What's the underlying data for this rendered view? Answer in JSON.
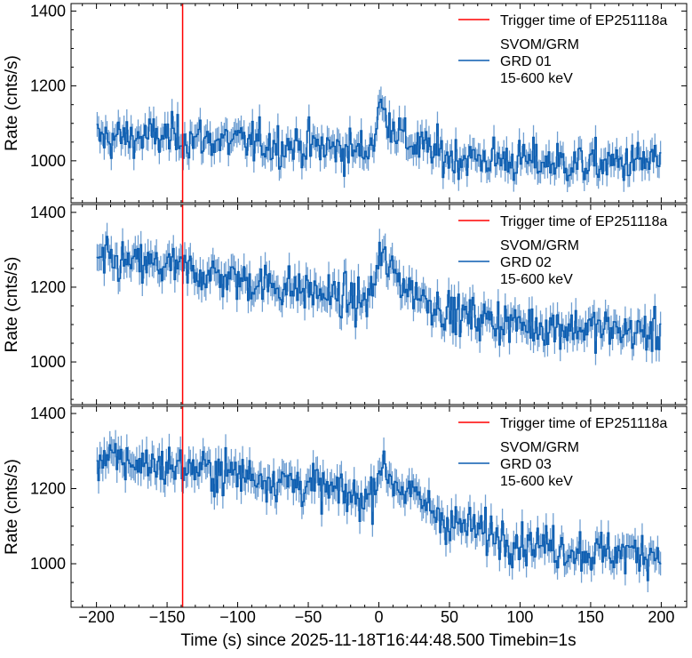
{
  "chart_data": {
    "type": "line",
    "xlabel": "Time (s) since 2025-11-18T16:44:48.500 Timebin=1s",
    "xlim": [
      -218,
      218
    ],
    "xticks": [
      -200,
      -150,
      -100,
      -50,
      0,
      50,
      100,
      150,
      200
    ],
    "xtick_labels": [
      "−200",
      "−150",
      "−100",
      "−50",
      "0",
      "50",
      "100",
      "150",
      "200"
    ],
    "bin_width_s": 1,
    "trigger": {
      "label": "Trigger time of EP251118a",
      "time": -139,
      "color": "#ff0000"
    },
    "series_color": "#0a5cb0",
    "panels": [
      {
        "ylabel": "Rate (cnts/s)",
        "ylim": [
          888,
          1420
        ],
        "yticks": [
          1000,
          1200,
          1400
        ],
        "legend": {
          "instrument": "SVOM/GRM",
          "detector": "GRD 01",
          "band": "15-600 keV"
        },
        "trend_time": [
          -200,
          -150,
          -100,
          -50,
          -10,
          -3,
          0,
          5,
          20,
          50,
          100,
          150,
          200
        ],
        "trend_rate": [
          1060,
          1065,
          1050,
          1040,
          1025,
          1060,
          1150,
          1120,
          1050,
          1010,
          1000,
          990,
          1000
        ]
      },
      {
        "ylabel": "Rate (cnts/s)",
        "ylim": [
          886,
          1421
        ],
        "yticks": [
          1000,
          1200,
          1400
        ],
        "legend": {
          "instrument": "SVOM/GRM",
          "detector": "GRD 02",
          "band": "15-600 keV"
        },
        "trend_time": [
          -200,
          -150,
          -100,
          -50,
          -10,
          -3,
          0,
          5,
          20,
          50,
          100,
          150,
          200
        ],
        "trend_rate": [
          1270,
          1255,
          1220,
          1190,
          1160,
          1200,
          1290,
          1260,
          1200,
          1130,
          1100,
          1090,
          1075
        ]
      },
      {
        "ylabel": "Rate (cnts/s)",
        "ylim": [
          884,
          1419
        ],
        "yticks": [
          1000,
          1200,
          1400
        ],
        "legend": {
          "instrument": "SVOM/GRM",
          "detector": "GRD 03",
          "band": "15-600 keV"
        },
        "trend_time": [
          -200,
          -150,
          -100,
          -50,
          -10,
          -3,
          0,
          5,
          20,
          50,
          100,
          150,
          200
        ],
        "trend_rate": [
          1280,
          1260,
          1240,
          1210,
          1170,
          1200,
          1270,
          1240,
          1190,
          1110,
          1060,
          1030,
          1030
        ]
      }
    ]
  }
}
